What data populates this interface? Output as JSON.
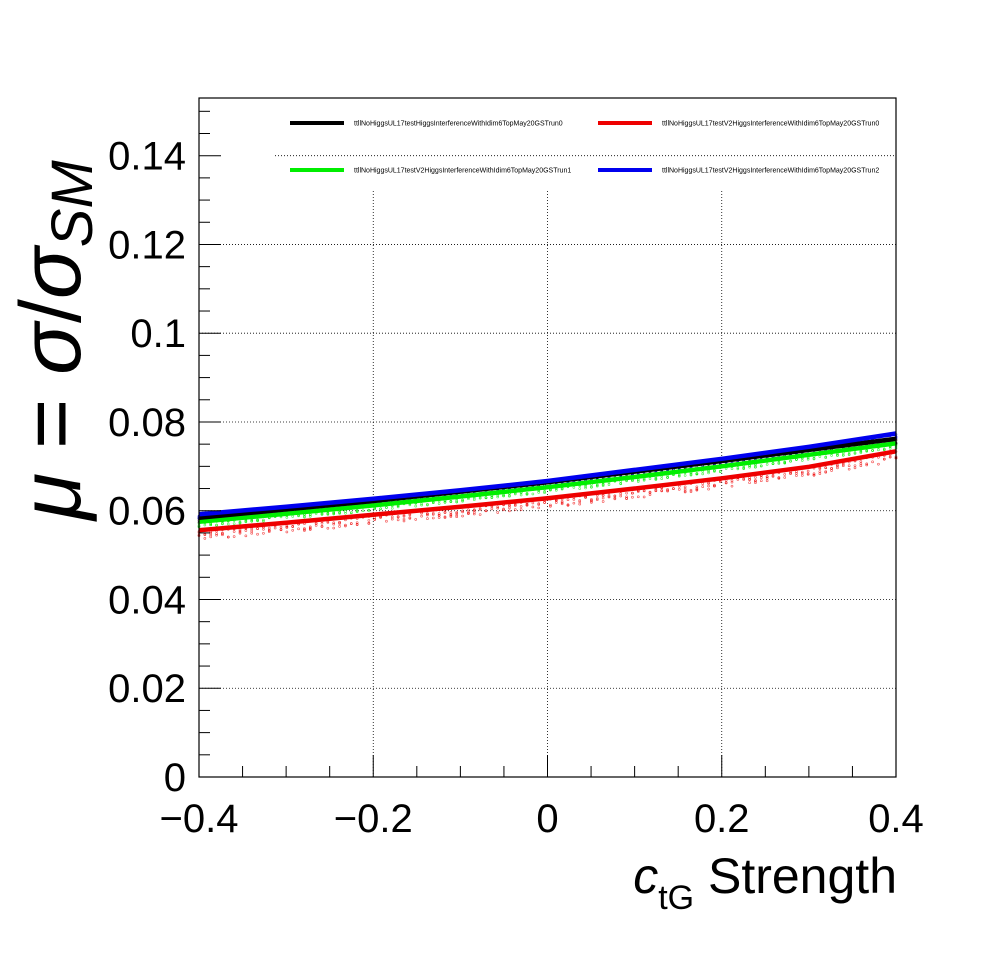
{
  "chart_data": {
    "type": "line",
    "title": "",
    "xlabel": {
      "main": "c",
      "sub": "tG",
      "suffix": " Strength"
    },
    "ylabel": {
      "mu": "μ",
      "eq": " = ",
      "sigma": "σ",
      "slash": "/",
      "sigma2": "σ",
      "sub": "SM"
    },
    "xlim": [
      -0.4,
      0.4
    ],
    "ylim": [
      0,
      0.153
    ],
    "x_ticks": [
      -0.4,
      -0.2,
      0,
      0.2,
      0.4
    ],
    "x_tick_labels": [
      "−0.4",
      "−0.2",
      "0",
      "0.2",
      "0.4"
    ],
    "y_ticks": [
      0,
      0.02,
      0.04,
      0.06,
      0.08,
      0.1,
      0.12,
      0.14
    ],
    "y_tick_labels": [
      "0",
      "0.02",
      "0.04",
      "0.06",
      "0.08",
      "0.1",
      "0.12",
      "0.14"
    ],
    "grid": true,
    "legend_position": "top",
    "x": [
      -0.4,
      -0.3,
      -0.2,
      -0.1,
      0.0,
      0.1,
      0.2,
      0.3,
      0.4
    ],
    "series": [
      {
        "name": "ttllNoHiggsUL17testHiggsInterferenceWithIdim6TopMay20GSTrun0",
        "color": "#000000",
        "values": [
          0.0584,
          0.0603,
          0.0622,
          0.0643,
          0.0664,
          0.0688,
          0.0712,
          0.0737,
          0.0762
        ]
      },
      {
        "name": "ttllNoHiggsUL17testV2HiggsInterferenceWithIdim6TopMay20GSTrun0",
        "color": "#ee0000",
        "values": [
          0.0556,
          0.0573,
          0.0591,
          0.0609,
          0.0628,
          0.065,
          0.0673,
          0.0699,
          0.0734
        ]
      },
      {
        "name": "ttllNoHiggsUL17testV2HiggsInterferenceWithIdim6TopMay20GSTrun1",
        "color": "#00ee00",
        "values": [
          0.0575,
          0.0593,
          0.0612,
          0.0632,
          0.0653,
          0.0676,
          0.07,
          0.0726,
          0.0752
        ]
      },
      {
        "name": "ttllNoHiggsUL17testV2HiggsInterferenceWithIdim6TopMay20GSTrun2",
        "color": "#0000ee",
        "values": [
          0.0592,
          0.0609,
          0.0627,
          0.0646,
          0.0667,
          0.0692,
          0.0717,
          0.0744,
          0.0774
        ]
      }
    ]
  }
}
